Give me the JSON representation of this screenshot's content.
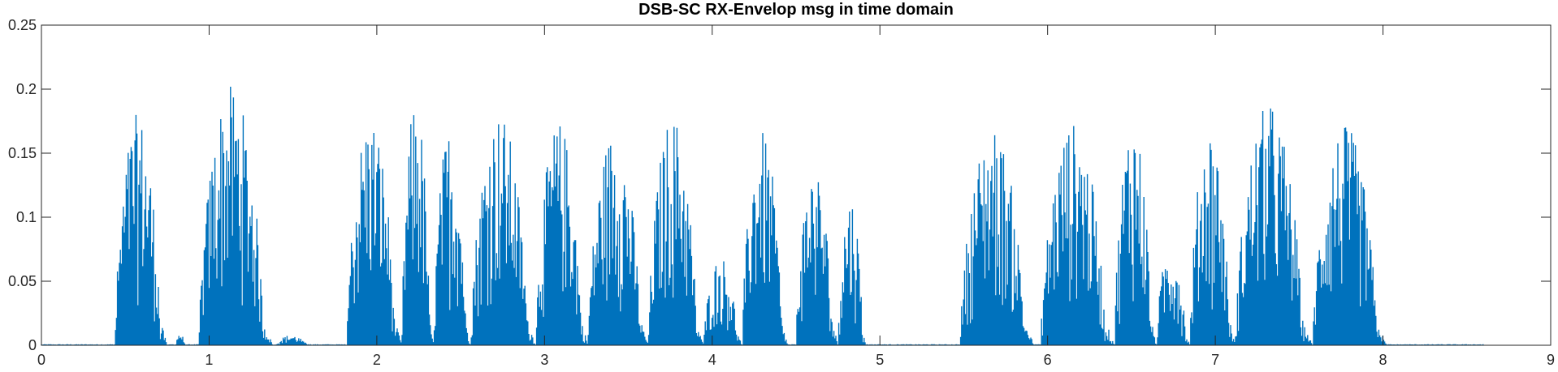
{
  "chart_data": {
    "type": "area",
    "title": "DSB-SC RX-Envelop msg in time domain",
    "xlabel": "",
    "ylabel": "",
    "xlim": [
      0,
      9
    ],
    "ylim": [
      0,
      0.25
    ],
    "xticks": [
      0,
      1,
      2,
      3,
      4,
      5,
      6,
      7,
      8,
      9
    ],
    "yticks": [
      0,
      0.05,
      0.1,
      0.15,
      0.2,
      0.25
    ],
    "xtick_labels": [
      "0",
      "1",
      "2",
      "3",
      "4",
      "5",
      "6",
      "7",
      "8",
      "9"
    ],
    "ytick_labels": [
      "0",
      "0.05",
      "0.1",
      "0.15",
      "0.2",
      "0.25"
    ],
    "grid": false,
    "series": [
      {
        "color": "#0072BD",
        "x_range": [
          0,
          8.6
        ],
        "segments": [
          {
            "x0": 0.44,
            "x1": 0.75,
            "peak": 0.181,
            "tail": 0.02
          },
          {
            "x0": 0.8,
            "x1": 0.86,
            "peak": 0.01,
            "tail": 0.004
          },
          {
            "x0": 0.94,
            "x1": 1.38,
            "peak": 0.203,
            "tail": 0.02
          },
          {
            "x0": 1.4,
            "x1": 1.6,
            "peak": 0.008,
            "tail": 0.003
          },
          {
            "x0": 1.82,
            "x1": 2.15,
            "peak": 0.18,
            "tail": 0.02
          },
          {
            "x0": 2.15,
            "x1": 2.34,
            "peak": 0.193,
            "tail": 0.02
          },
          {
            "x0": 2.34,
            "x1": 2.56,
            "peak": 0.171,
            "tail": 0.02
          },
          {
            "x0": 2.56,
            "x1": 2.95,
            "peak": 0.182,
            "tail": 0.02
          },
          {
            "x0": 2.95,
            "x1": 3.26,
            "peak": 0.175,
            "tail": 0.02
          },
          {
            "x0": 3.26,
            "x1": 3.62,
            "peak": 0.168,
            "tail": 0.02
          },
          {
            "x0": 3.62,
            "x1": 3.95,
            "peak": 0.18,
            "tail": 0.02
          },
          {
            "x0": 3.95,
            "x1": 4.18,
            "peak": 0.07,
            "tail": 0.01
          },
          {
            "x0": 4.18,
            "x1": 4.45,
            "peak": 0.167,
            "tail": 0.02
          },
          {
            "x0": 4.5,
            "x1": 4.75,
            "peak": 0.14,
            "tail": 0.02
          },
          {
            "x0": 4.75,
            "x1": 4.92,
            "peak": 0.118,
            "tail": 0.01
          },
          {
            "x0": 5.48,
            "x1": 5.92,
            "peak": 0.17,
            "tail": 0.02
          },
          {
            "x0": 5.96,
            "x1": 6.4,
            "peak": 0.174,
            "tail": 0.02
          },
          {
            "x0": 6.4,
            "x1": 6.65,
            "peak": 0.179,
            "tail": 0.02
          },
          {
            "x0": 6.65,
            "x1": 6.85,
            "peak": 0.08,
            "tail": 0.01
          },
          {
            "x0": 6.85,
            "x1": 7.12,
            "peak": 0.172,
            "tail": 0.02
          },
          {
            "x0": 7.12,
            "x1": 7.58,
            "peak": 0.189,
            "tail": 0.02
          },
          {
            "x0": 7.58,
            "x1": 8.02,
            "peak": 0.172,
            "tail": 0.02
          }
        ]
      }
    ]
  }
}
